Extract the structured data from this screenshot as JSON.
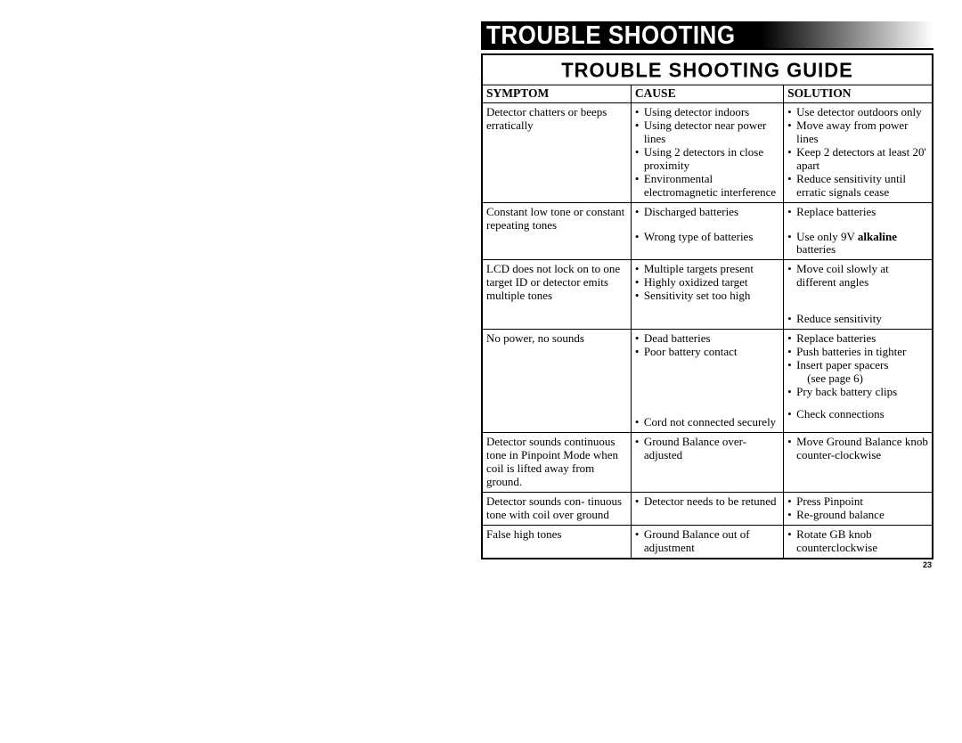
{
  "header": "TROUBLE SHOOTING",
  "title": "TROUBLE SHOOTING GUIDE",
  "columns": [
    "SYMPTOM",
    "CAUSE",
    "SOLUTION"
  ],
  "rows": [
    {
      "symptom": "Detector chatters or beeps erratically",
      "cause": [
        "Using detector indoors",
        "Using detector near power lines",
        "Using 2 detectors in close proximity",
        "Environmental electromagnetic interference"
      ],
      "solution": [
        "Use detector outdoors only",
        "Move away from power lines",
        "Keep 2 detectors at least 20' apart",
        "Reduce sensitivity until erratic signals cease"
      ]
    },
    {
      "symptom": "Constant low tone or constant repeating tones",
      "cause_html": "<li>Discharged batteries</li><li style='height:13px' class='no-bullet'></li><li>Wrong type of batteries</li>",
      "solution_html": "<li>Replace batteries</li><li style='height:13px' class='no-bullet'></li><li>Use only 9V <span class='bold'>alkaline</span> batteries</li>"
    },
    {
      "symptom": "LCD does not lock on to one target ID or detector emits multiple tones",
      "cause": [
        "Multiple targets present",
        "Highly oxidized target",
        "Sensitivity set too high"
      ],
      "solution_html": "<li>Move coil slowly at different angles</li><li class='no-bullet' style='height:26px'></li><li>Reduce sensitivity</li>"
    },
    {
      "symptom": "No power, no sounds",
      "cause_html": "<li>Dead batteries</li><li>Poor battery contact</li><li class='no-bullet' style='height:64px'></li><li>Cord not connected securely</li>",
      "solution_html": "<li>Replace batteries</li><li>Push batteries in tighter</li><li>Insert paper spacers<br><span style='padding-left:12px'>(see page 6)</span></li><li>Pry back battery clips</li><li class='no-bullet' style='height:10px'></li><li>Check connections</li>"
    },
    {
      "symptom": "Detector sounds continuous tone in Pinpoint Mode when coil is lifted away from ground.",
      "cause": [
        "Ground Balance over-adjusted"
      ],
      "solution": [
        "Move Ground Balance knob counter-clockwise"
      ]
    },
    {
      "symptom": "Detector sounds con- tinuous  tone with coil over ground",
      "cause": [
        "Detector needs to be retuned"
      ],
      "solution": [
        "Press Pinpoint",
        "Re-ground balance"
      ]
    },
    {
      "symptom": "False high tones",
      "cause": [
        "Ground Balance out of adjustment"
      ],
      "solution": [
        "Rotate GB knob counterclockwise"
      ]
    }
  ],
  "page_number": "23"
}
